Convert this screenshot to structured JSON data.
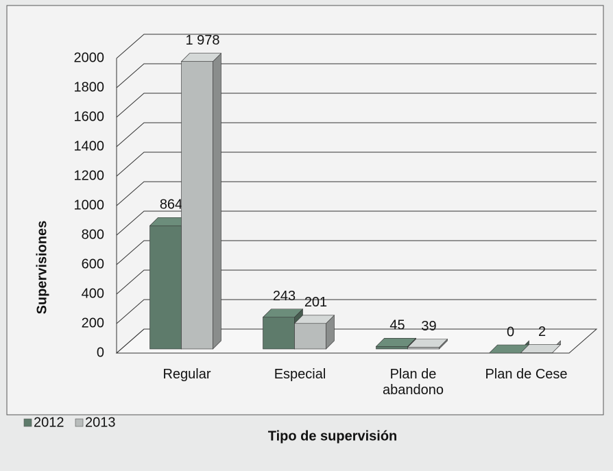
{
  "chart_data": {
    "type": "bar3d",
    "y_label": "Supervisiones",
    "x_label": "Tipo de supervisión",
    "categories": [
      "Regular",
      "Especial",
      "Plan de abandono",
      "Plan de Cese"
    ],
    "series": [
      {
        "name": "2012",
        "color": "#5e7b6b",
        "values": [
          864,
          243,
          45,
          0
        ],
        "value_labels": [
          "864",
          "243",
          "45",
          "0"
        ]
      },
      {
        "name": "2013",
        "color": "#b8bcbb",
        "values": [
          1978,
          201,
          39,
          2
        ],
        "value_labels": [
          "1 978",
          "201",
          "39",
          "2"
        ]
      }
    ],
    "ylim": [
      0,
      2000
    ],
    "yticks": [
      0,
      200,
      400,
      600,
      800,
      1000,
      1200,
      1400,
      1600,
      1800,
      2000
    ],
    "grid": true,
    "legend": "bottom-left"
  }
}
